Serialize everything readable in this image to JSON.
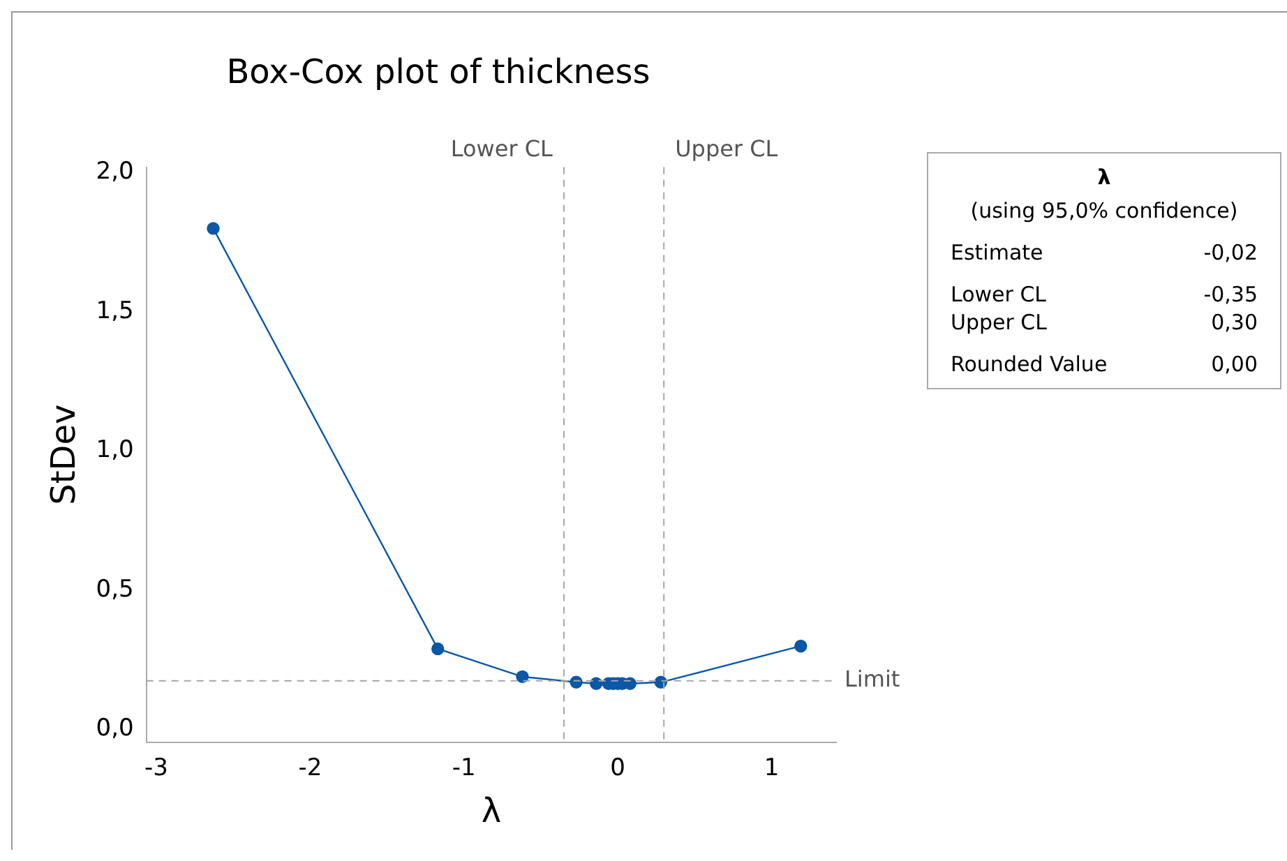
{
  "chart_data": {
    "type": "line",
    "title": "Box-Cox plot of thickness",
    "xlabel": "λ",
    "ylabel": "StDev",
    "x": [
      -2.63,
      -1.17,
      -0.62,
      -0.27,
      -0.14,
      -0.06,
      -0.03,
      0,
      0.03,
      0.08,
      0.28,
      1.19
    ],
    "series": [
      {
        "color": "#0b57a8",
        "values": [
          1.8,
          0.29,
          0.19,
          0.17,
          0.165,
          0.165,
          0.165,
          0.165,
          0.165,
          0.165,
          0.17,
          0.3
        ]
      }
    ],
    "xlim": [
      -3.065,
      1.42
    ],
    "ylim": [
      -0.045,
      2.02
    ],
    "xticks": [
      -3,
      -2,
      -1,
      0,
      1
    ],
    "yticks": [
      {
        "value": 0,
        "label": "0,0"
      },
      {
        "value": 0.5,
        "label": "0,5"
      },
      {
        "value": 1,
        "label": "1,0"
      },
      {
        "value": 1.5,
        "label": "1,5"
      },
      {
        "value": 2,
        "label": "2,0"
      }
    ],
    "ref_lines": [
      {
        "axis": "x",
        "value": -0.35,
        "label": "Lower CL",
        "color": "#a6a6a6",
        "line_style": "dashed"
      },
      {
        "axis": "x",
        "value": 0.3,
        "label": "Upper CL",
        "color": "#a6a6a6",
        "line_style": "dashed"
      },
      {
        "axis": "y",
        "value": 0.175,
        "label": "Limit",
        "color": "#a6a6a6",
        "line_style": "dashed"
      }
    ],
    "annotations": [
      "λ",
      "(using 95,0% confidence)",
      "Estimate",
      "-0,02",
      "Lower CL",
      "-0,35",
      "Upper CL",
      "0,30",
      "Rounded Value",
      "0,00"
    ],
    "grid": false,
    "legend": false,
    "marker": "circle",
    "line_style": "solid"
  }
}
